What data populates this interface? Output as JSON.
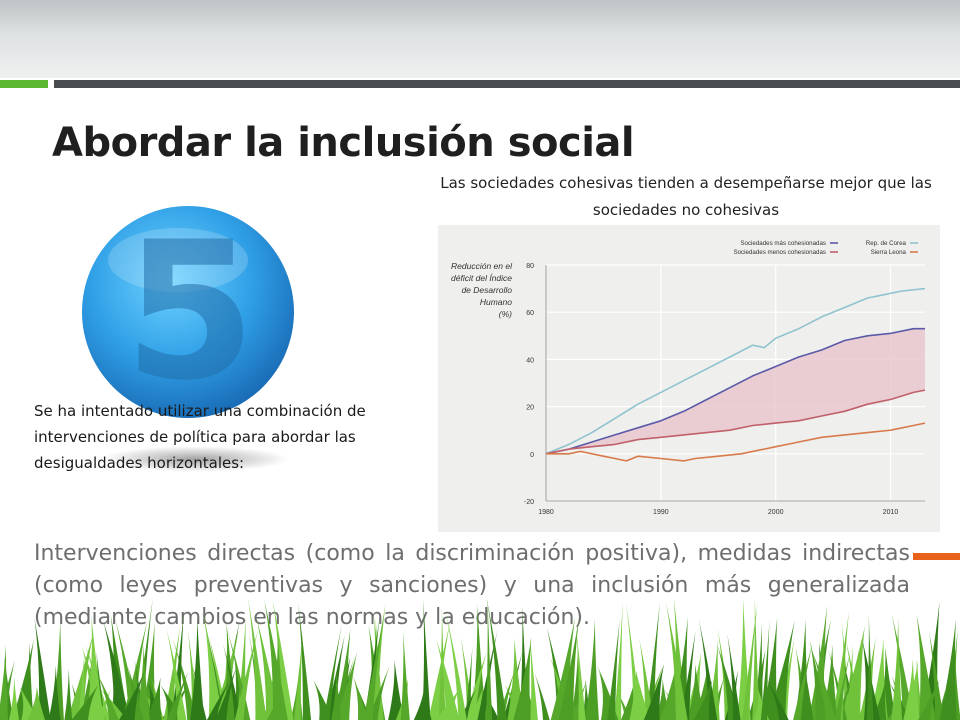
{
  "slide": {
    "title": "Abordar la inclusión social",
    "badge_number": "5",
    "side_text": "Se ha intentado utilizar una combinación de intervenciones de política para abordar las desigualdades horizontales:",
    "body_text": "Intervenciones directas (como la discriminación positiva), medidas indirectas (como leyes preventivas y sanciones) y una inclusión más generalizada (mediante cambios en las normas y la educación).",
    "chart_caption": "Las sociedades cohesivas tienden a desempeñarse mejor que las sociedades no cohesivas"
  },
  "colors": {
    "accent_green": "#5cb82e",
    "accent_orange": "#e8621c",
    "accent_gray": "#4a4d50",
    "badge_blue": "#2f9fe6"
  },
  "chart_data": {
    "type": "line",
    "ylabel": "Reducción en el déficit del Índice de Desarrollo Humano (%)",
    "xlim": [
      1980,
      2013
    ],
    "ylim": [
      -20,
      80
    ],
    "x_ticks": [
      1980,
      1990,
      2000,
      2010
    ],
    "y_ticks": [
      -20,
      0,
      20,
      40,
      60,
      80
    ],
    "grid": true,
    "legend_position": "top-right",
    "legend": [
      {
        "label": "Sociedades más cohesionadas",
        "color": "#5a5aa8"
      },
      {
        "label": "Sociedades menos cohesionadas",
        "color": "#c0606a"
      },
      {
        "label": "Rep. de Corea",
        "color": "#8fc3cf"
      },
      {
        "label": "Sierra Leona",
        "color": "#d87a4a"
      }
    ],
    "band": {
      "between": [
        "Sociedades más cohesionadas",
        "Sociedades menos cohesionadas"
      ],
      "color": "#e8c4ca"
    },
    "series": [
      {
        "name": "Rep. de Corea",
        "color": "#8fc3cf",
        "x": [
          1980,
          1982,
          1984,
          1986,
          1988,
          1990,
          1992,
          1994,
          1996,
          1998,
          1999,
          2000,
          2002,
          2004,
          2006,
          2008,
          2009,
          2010,
          2011,
          2013
        ],
        "y": [
          0,
          4,
          9,
          15,
          21,
          26,
          31,
          36,
          41,
          46,
          45,
          49,
          53,
          58,
          62,
          66,
          67,
          68,
          69,
          70
        ]
      },
      {
        "name": "Sociedades más cohesionadas",
        "color": "#5a5aa8",
        "x": [
          1980,
          1982,
          1984,
          1986,
          1988,
          1990,
          1992,
          1994,
          1996,
          1998,
          2000,
          2002,
          2004,
          2006,
          2008,
          2010,
          2012,
          2013
        ],
        "y": [
          0,
          2,
          5,
          8,
          11,
          14,
          18,
          23,
          28,
          33,
          37,
          41,
          44,
          48,
          50,
          51,
          53,
          53
        ]
      },
      {
        "name": "Sociedades menos cohesionadas",
        "color": "#c0606a",
        "x": [
          1980,
          1982,
          1984,
          1986,
          1988,
          1990,
          1992,
          1994,
          1996,
          1998,
          2000,
          2002,
          2004,
          2006,
          2008,
          2010,
          2012,
          2013
        ],
        "y": [
          0,
          2,
          3,
          4,
          6,
          7,
          8,
          9,
          10,
          12,
          13,
          14,
          16,
          18,
          21,
          23,
          26,
          27
        ]
      },
      {
        "name": "Sierra Leona",
        "color": "#d87a4a",
        "x": [
          1980,
          1982,
          1983,
          1985,
          1986,
          1987,
          1988,
          1990,
          1992,
          1993,
          1995,
          1997,
          1999,
          2000,
          2001,
          2002,
          2004,
          2006,
          2008,
          2010,
          2012,
          2013
        ],
        "y": [
          0,
          0,
          1,
          -1,
          -2,
          -3,
          -1,
          -2,
          -3,
          -2,
          -1,
          0,
          2,
          3,
          4,
          5,
          7,
          8,
          9,
          10,
          12,
          13
        ]
      }
    ]
  }
}
